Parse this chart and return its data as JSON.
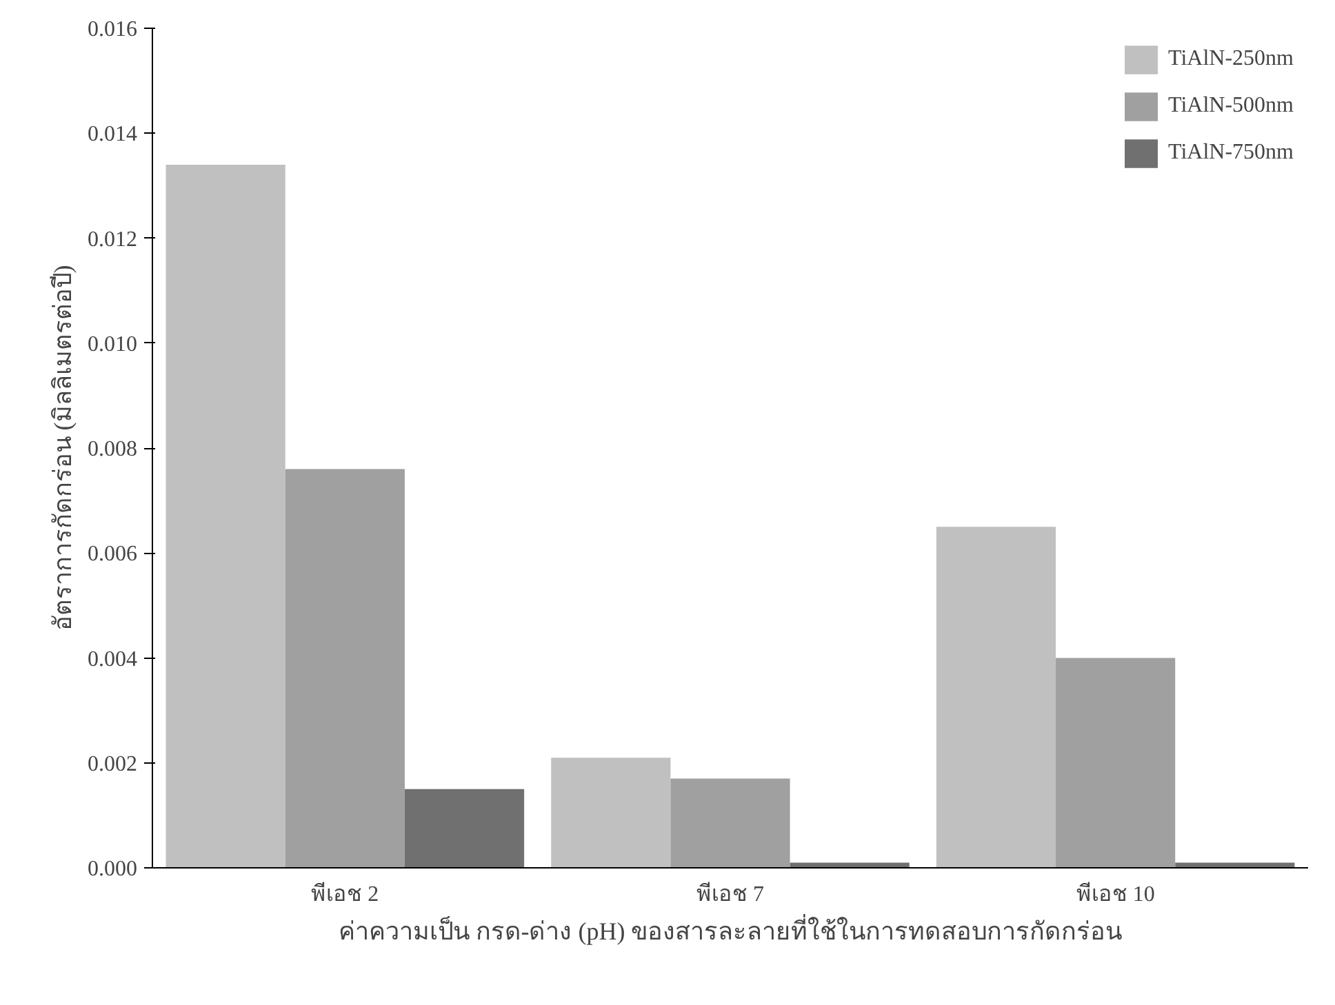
{
  "chart_data": {
    "type": "bar",
    "xlabel": "ค่าความเป็น กรด-ด่าง (pH) ของสารละลายที่ใช้ในการทดสอบการกัดกร่อน",
    "ylabel": "อัตราการกัดกร่อน (มิลลิเมตรต่อปี)",
    "categories": [
      "พีเอช 2",
      "พีเอช 7",
      "พีเอช 10"
    ],
    "series": [
      {
        "name": "TiAlN-250nm",
        "color": "#c0c0c0",
        "values": [
          0.0134,
          0.0021,
          0.0065
        ]
      },
      {
        "name": "TiAlN-500nm",
        "color": "#a0a0a0",
        "values": [
          0.0076,
          0.0017,
          0.004
        ]
      },
      {
        "name": "TiAlN-750nm",
        "color": "#707070",
        "values": [
          0.0015,
          0.0001,
          0.0001
        ]
      }
    ],
    "ylim": [
      0,
      0.016
    ],
    "yticks": [
      {
        "value": 0,
        "label": "0.000"
      },
      {
        "value": 0.002,
        "label": "0.002"
      },
      {
        "value": 0.004,
        "label": "0.004"
      },
      {
        "value": 0.006,
        "label": "0.006"
      },
      {
        "value": 0.008,
        "label": "0.008"
      },
      {
        "value": 0.01,
        "label": "0.010"
      },
      {
        "value": 0.012,
        "label": "0.012"
      },
      {
        "value": 0.014,
        "label": "0.014"
      },
      {
        "value": 0.016,
        "label": "0.016"
      }
    ],
    "grid": false,
    "legend": "top right"
  }
}
